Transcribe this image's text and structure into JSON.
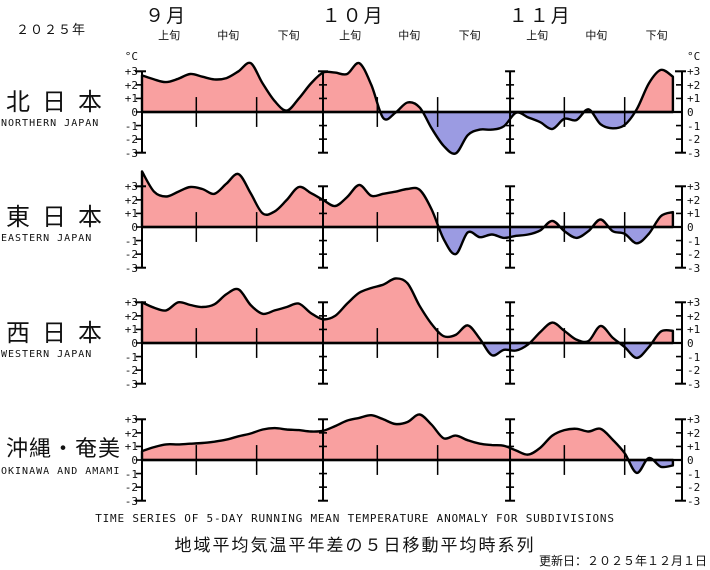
{
  "header": {
    "year": "２０２５年",
    "months": [
      {
        "label": "９月"
      },
      {
        "label": "１０月"
      },
      {
        "label": "１１月"
      }
    ],
    "periods": [
      "上旬",
      "中旬",
      "下旬"
    ],
    "unit": "°C"
  },
  "axis": {
    "tick_labels": [
      "+3",
      "+2",
      "+1",
      "0",
      "-1",
      "-2",
      "-3"
    ],
    "tick_values": [
      3,
      2,
      1,
      0,
      -1,
      -2,
      -3
    ]
  },
  "panels": [
    {
      "name_jp": "北日本",
      "name_en": "NORTHERN JAPAN"
    },
    {
      "name_jp": "東日本",
      "name_en": "EASTERN JAPAN"
    },
    {
      "name_jp": "西日本",
      "name_en": "WESTERN JAPAN"
    },
    {
      "name_jp": "沖縄・奄美",
      "name_en": "OKINAWA AND AMAMI"
    }
  ],
  "footer": {
    "title_en": "TIME SERIES OF 5-DAY RUNNING MEAN TEMPERATURE ANOMALY FOR SUBDIVISIONS",
    "title_jp": "地域平均気温平年差の５日移動平均時系列",
    "updated": "更新日：２０２５年１２月１日"
  },
  "chart_data": {
    "type": "area",
    "title": "地域平均気温平年差の５日移動平均時系列",
    "x_description": "Days from 2025-09-01 (day 0) to 2025-11-28 (day 88), sampled every 2 days",
    "x_start_day": 0,
    "x_step_days": 2,
    "x_axis_range_days": [
      0,
      89.5
    ],
    "month_boundary_days": [
      30,
      61
    ],
    "minor_tick_days": [
      9,
      19,
      39,
      49,
      70,
      80
    ],
    "ylabel": "°C",
    "ylim_ticks": [
      -3,
      3
    ],
    "grid": false,
    "colors": {
      "positive_fill": "#f9a0a0",
      "negative_fill": "#9b9be2",
      "line": "#000000",
      "axis": "#000000"
    },
    "series": [
      {
        "name_jp": "北日本",
        "name_en": "NORTHERN JAPAN",
        "values": [
          2.7,
          2.4,
          2.2,
          2.45,
          2.8,
          2.6,
          2.4,
          2.5,
          3.0,
          3.6,
          2.1,
          0.8,
          0.1,
          1.0,
          2.1,
          2.9,
          2.9,
          2.8,
          3.6,
          2.0,
          -0.45,
          -0.05,
          0.7,
          0.35,
          -1.2,
          -2.5,
          -3.05,
          -1.7,
          -1.3,
          -1.3,
          -1.05,
          -0.05,
          -0.4,
          -0.75,
          -1.25,
          -0.5,
          -0.6,
          0.2,
          -0.9,
          -1.2,
          -0.95,
          0.2,
          2.1,
          3.1,
          2.6
        ]
      },
      {
        "name_jp": "東日本",
        "name_en": "EASTERN JAPAN",
        "values": [
          4.1,
          2.6,
          2.25,
          2.6,
          2.95,
          2.8,
          2.45,
          3.2,
          3.9,
          2.5,
          1.0,
          1.15,
          2.0,
          2.95,
          2.5,
          2.0,
          1.55,
          2.2,
          3.1,
          2.3,
          2.45,
          2.6,
          2.8,
          2.75,
          1.3,
          -0.9,
          -2.0,
          -0.4,
          -0.75,
          -0.55,
          -0.8,
          -0.65,
          -0.55,
          -0.25,
          0.45,
          -0.3,
          -0.8,
          -0.3,
          0.55,
          -0.3,
          -0.5,
          -1.2,
          -0.5,
          0.8,
          1.1
        ]
      },
      {
        "name_jp": "西日本",
        "name_en": "WESTERN JAPAN",
        "values": [
          3.0,
          2.6,
          2.4,
          3.0,
          2.8,
          2.65,
          2.85,
          3.6,
          3.95,
          2.8,
          2.15,
          2.4,
          2.65,
          2.9,
          2.2,
          1.75,
          2.0,
          2.9,
          3.7,
          4.05,
          4.3,
          4.75,
          4.4,
          2.75,
          1.4,
          0.5,
          0.6,
          1.3,
          0.3,
          -0.9,
          -0.5,
          -0.55,
          -0.1,
          0.8,
          1.5,
          0.9,
          0.25,
          0.15,
          1.25,
          0.4,
          -0.3,
          -1.1,
          -0.3,
          0.85,
          0.9
        ]
      },
      {
        "name_jp": "沖縄・奄美",
        "name_en": "OKINAWA AND AMAMI",
        "values": [
          0.65,
          0.95,
          1.15,
          1.15,
          1.2,
          1.25,
          1.35,
          1.5,
          1.75,
          1.95,
          2.25,
          2.35,
          2.25,
          2.2,
          2.1,
          2.15,
          2.5,
          2.9,
          3.1,
          3.3,
          3.0,
          2.65,
          2.8,
          3.35,
          2.6,
          1.6,
          1.8,
          1.45,
          1.2,
          1.1,
          1.05,
          0.7,
          0.4,
          0.9,
          1.8,
          2.2,
          2.3,
          2.1,
          2.3,
          1.5,
          0.5,
          -0.95,
          0.15,
          -0.5,
          -0.4
        ]
      }
    ]
  }
}
